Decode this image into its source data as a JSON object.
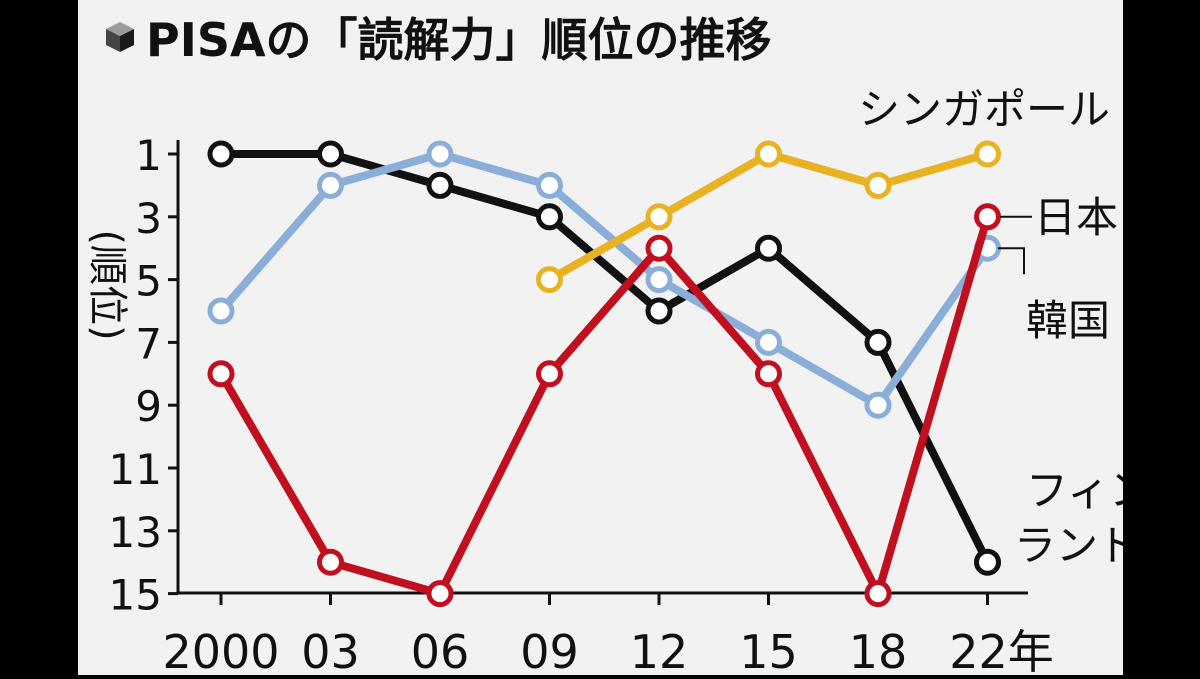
{
  "chart_data": {
    "type": "line",
    "title": "PISAの「読解力」順位の推移",
    "ylabel": "(順位)",
    "x": [
      "2000",
      "03",
      "06",
      "09",
      "12",
      "15",
      "18",
      "22年"
    ],
    "y_ticks": [
      1,
      3,
      5,
      7,
      9,
      11,
      13,
      15
    ],
    "ylim": [
      15,
      1
    ],
    "y_reversed": true,
    "grid": false,
    "legend": "inline-labels",
    "series": [
      {
        "name": "フィンランド",
        "label_lines": [
          "フィン",
          "ランド"
        ],
        "color": "#111111",
        "values": [
          1,
          1,
          2,
          3,
          6,
          4,
          7,
          14
        ]
      },
      {
        "name": "韓国",
        "label_lines": [
          "韓国"
        ],
        "color": "#8aaed8",
        "values": [
          6,
          2,
          1,
          2,
          5,
          7,
          9,
          4
        ]
      },
      {
        "name": "シンガポール",
        "label_lines": [
          "シンガポール"
        ],
        "color": "#e8b223",
        "values": [
          null,
          null,
          null,
          5,
          3,
          1,
          2,
          1
        ]
      },
      {
        "name": "日本",
        "label_lines": [
          "日本"
        ],
        "color": "#c0101f",
        "values": [
          8,
          14,
          15,
          8,
          4,
          8,
          15,
          3
        ]
      }
    ],
    "title_icon": "cube-icon"
  }
}
